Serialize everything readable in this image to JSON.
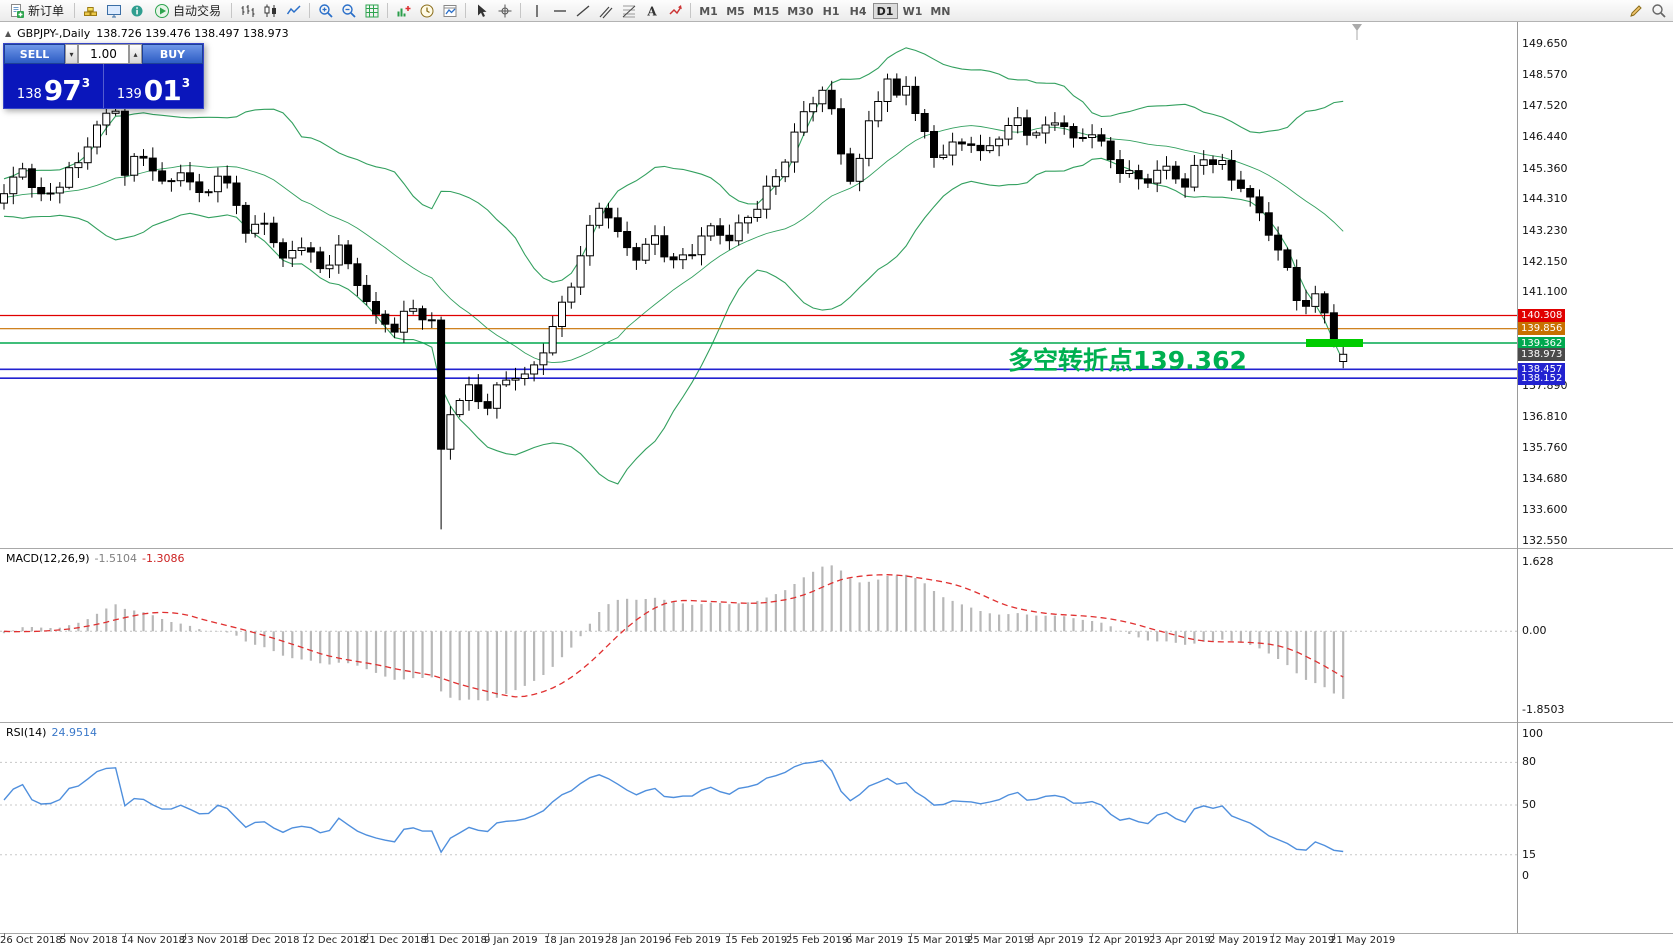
{
  "toolbar": {
    "items": [
      {
        "type": "button",
        "name": "new-order",
        "icon": "new-order",
        "label": "新订单"
      },
      {
        "type": "sep"
      },
      {
        "type": "icon",
        "name": "gold-chart",
        "icon": "gold"
      },
      {
        "type": "icon",
        "name": "market-watch",
        "icon": "monitor"
      },
      {
        "type": "icon",
        "name": "data-window",
        "icon": "info"
      },
      {
        "type": "button",
        "name": "auto-trading",
        "icon": "play",
        "label": "自动交易"
      },
      {
        "type": "sep"
      },
      {
        "type": "icon",
        "name": "bar-chart-mode",
        "icon": "bars"
      },
      {
        "type": "icon",
        "name": "candlestick-mode",
        "icon": "candles"
      },
      {
        "type": "icon",
        "name": "line-chart-mode",
        "icon": "linechart"
      },
      {
        "type": "sep"
      },
      {
        "type": "icon",
        "name": "zoom-in",
        "icon": "zoom-in"
      },
      {
        "type": "icon",
        "name": "zoom-out",
        "icon": "zoom-out"
      },
      {
        "type": "icon",
        "name": "grid-toggle",
        "icon": "grid"
      },
      {
        "type": "sep"
      },
      {
        "type": "icon",
        "name": "indicators-list",
        "icon": "indicators"
      },
      {
        "type": "icon",
        "name": "periods",
        "icon": "clock"
      },
      {
        "type": "icon",
        "name": "templates",
        "icon": "template"
      },
      {
        "type": "sep"
      },
      {
        "type": "icon",
        "name": "cursor-tool",
        "icon": "cursor"
      },
      {
        "type": "icon",
        "name": "crosshair-tool",
        "icon": "crosshair"
      },
      {
        "type": "sep"
      },
      {
        "type": "icon",
        "name": "vertical-line-tool",
        "icon": "vline"
      },
      {
        "type": "icon",
        "name": "horizontal-line-tool",
        "icon": "hline"
      },
      {
        "type": "icon",
        "name": "trendline-tool",
        "icon": "trend"
      },
      {
        "type": "icon",
        "name": "channel-tool",
        "icon": "channel"
      },
      {
        "type": "icon",
        "name": "fibonacci-tool",
        "icon": "fibo"
      },
      {
        "type": "icon",
        "name": "text-tool",
        "icon": "textA"
      },
      {
        "type": "icon",
        "name": "arrows-tool",
        "icon": "arrowico"
      },
      {
        "type": "sep"
      }
    ],
    "timeframes": [
      "M1",
      "M5",
      "M15",
      "M30",
      "H1",
      "H4",
      "D1",
      "W1",
      "MN"
    ],
    "active_timeframe": "D1",
    "right_icons": [
      {
        "name": "draw-edit",
        "icon": "pencil"
      },
      {
        "name": "magnifier-tool",
        "icon": "magnify"
      }
    ]
  },
  "chart_header": {
    "collapse_icon": "▲",
    "symbol_period": "GBPJPY-,Daily",
    "ohlc": "138.726 139.476 138.497 138.973"
  },
  "trade_panel": {
    "sell_label": "SELL",
    "buy_label": "BUY",
    "volume": "1.00",
    "spin_down": "▾",
    "spin_up": "▴",
    "sell_price": {
      "prefix": "138",
      "big": "97",
      "sup": "3"
    },
    "buy_price": {
      "prefix": "139",
      "big": "01",
      "sup": "3"
    }
  },
  "annotation": {
    "text": "多空转折点139.362",
    "color": "#00B050"
  },
  "highlight": {
    "price": 139.362,
    "color": "#00CC00"
  },
  "price_axis": {
    "labels": [
      "149.650",
      "148.570",
      "147.520",
      "146.440",
      "145.360",
      "144.310",
      "143.230",
      "142.150",
      "141.100",
      "137.890",
      "136.810",
      "135.760",
      "134.680",
      "133.600",
      "132.550"
    ],
    "tags": [
      {
        "label": "140.308",
        "price": 140.308,
        "color": "#e00000",
        "line_width": 1.2
      },
      {
        "label": "139.856",
        "price": 139.856,
        "color": "#c87000",
        "line_width": 1.2
      },
      {
        "label": "139.362",
        "price": 139.362,
        "color": "#00a84f",
        "line_width": 1.4
      },
      {
        "label": "138.457",
        "price": 138.457,
        "color": "#2222d0",
        "line_width": 1.7
      },
      {
        "label": "138.152",
        "price": 138.152,
        "color": "#2222d0",
        "line_width": 1.7
      }
    ],
    "current": {
      "label": "138.973",
      "price": 138.973,
      "color": "#4a4a4a"
    }
  },
  "macd_panel": {
    "title": "MACD(12,26,9)",
    "value_main": "-1.5104",
    "value_signal": "-1.3086",
    "axis_labels": [
      {
        "label": "1.628",
        "value": 1.628
      },
      {
        "label": "0.00",
        "value": 0
      },
      {
        "label": "-1.8503",
        "value": -1.8503
      }
    ],
    "histogram_color": "#b8b8b8",
    "signal_color": "#e03030"
  },
  "rsi_panel": {
    "title": "RSI(14)",
    "value": "24.9514",
    "axis_labels": [
      {
        "label": "100",
        "value": 100
      },
      {
        "label": "80",
        "value": 80
      },
      {
        "label": "50",
        "value": 50
      },
      {
        "label": "15",
        "value": 15
      },
      {
        "label": "0",
        "value": 0
      }
    ],
    "levels": [
      80,
      50,
      15
    ],
    "line_color": "#4f8fdd"
  },
  "date_axis": [
    "26 Oct 2018",
    "5 Nov 2018",
    "14 Nov 2018",
    "23 Nov 2018",
    "3 Dec 2018",
    "12 Dec 2018",
    "21 Dec 2018",
    "31 Dec 2018",
    "9 Jan 2019",
    "18 Jan 2019",
    "28 Jan 2019",
    "6 Feb 2019",
    "15 Feb 2019",
    "25 Feb 2019",
    "6 Mar 2019",
    "15 Mar 2019",
    "25 Mar 2019",
    "3 Apr 2019",
    "12 Apr 2019",
    "23 Apr 2019",
    "2 May 2019",
    "12 May 2019",
    "21 May 2019"
  ],
  "chart_data": {
    "type": "candlestick",
    "symbol": "GBPJPY",
    "timeframe": "Daily",
    "y_axis_range": [
      132.55,
      149.65
    ],
    "last_candle": {
      "open": 138.726,
      "high": 139.476,
      "low": 138.497,
      "close": 138.973
    },
    "flash_crash_low": 132.95,
    "horizontal_levels": [
      140.308,
      139.856,
      139.362,
      138.457,
      138.152
    ],
    "bollinger": {
      "period": 20,
      "deviation": 2,
      "color": "#33a05f"
    },
    "indicators": {
      "macd": [
        12,
        26,
        9
      ],
      "macd_values": [
        -1.5104,
        -1.3086
      ],
      "rsi_period": 14,
      "rsi_value": 24.9514
    },
    "close_anchors": [
      [
        0,
        144.5
      ],
      [
        2,
        145.3
      ],
      [
        4,
        144.2
      ],
      [
        6,
        144.9
      ],
      [
        8,
        145.7
      ],
      [
        10,
        146.9
      ],
      [
        12,
        147.4
      ],
      [
        13,
        145.1
      ],
      [
        15,
        145.8
      ],
      [
        17,
        144.8
      ],
      [
        19,
        145.4
      ],
      [
        21,
        144.5
      ],
      [
        23,
        145.0
      ],
      [
        25,
        144.2
      ],
      [
        26,
        143.0
      ],
      [
        28,
        143.6
      ],
      [
        30,
        142.3
      ],
      [
        32,
        142.9
      ],
      [
        34,
        141.8
      ],
      [
        36,
        142.5
      ],
      [
        38,
        141.4
      ],
      [
        40,
        140.3
      ],
      [
        42,
        140.0
      ],
      [
        44,
        140.6
      ],
      [
        46,
        139.9
      ],
      [
        47,
        135.6
      ],
      [
        48,
        136.9
      ],
      [
        50,
        137.8
      ],
      [
        52,
        137.3
      ],
      [
        54,
        138.3
      ],
      [
        56,
        138.1
      ],
      [
        58,
        139.0
      ],
      [
        60,
        140.6
      ],
      [
        62,
        142.4
      ],
      [
        64,
        144.3
      ],
      [
        66,
        143.1
      ],
      [
        68,
        142.2
      ],
      [
        70,
        142.9
      ],
      [
        72,
        142.1
      ],
      [
        74,
        142.7
      ],
      [
        76,
        143.4
      ],
      [
        78,
        142.9
      ],
      [
        80,
        143.6
      ],
      [
        82,
        144.5
      ],
      [
        84,
        145.8
      ],
      [
        86,
        147.4
      ],
      [
        88,
        148.1
      ],
      [
        89,
        147.2
      ],
      [
        90,
        145.9
      ],
      [
        91,
        144.9
      ],
      [
        92,
        145.4
      ],
      [
        93,
        147.1
      ],
      [
        95,
        148.4
      ],
      [
        96,
        148.0
      ],
      [
        97,
        148.4
      ],
      [
        98,
        147.3
      ],
      [
        99,
        146.5
      ],
      [
        100,
        145.9
      ],
      [
        101,
        145.7
      ],
      [
        103,
        146.3
      ],
      [
        105,
        145.9
      ],
      [
        107,
        146.6
      ],
      [
        109,
        147.1
      ],
      [
        111,
        146.4
      ],
      [
        113,
        147.0
      ],
      [
        115,
        146.3
      ],
      [
        117,
        146.7
      ],
      [
        119,
        145.8
      ],
      [
        121,
        145.1
      ],
      [
        123,
        144.9
      ],
      [
        125,
        145.3
      ],
      [
        127,
        144.8
      ],
      [
        129,
        145.9
      ],
      [
        131,
        145.5
      ],
      [
        133,
        144.7
      ],
      [
        135,
        143.7
      ],
      [
        137,
        142.5
      ],
      [
        138,
        141.8
      ],
      [
        139,
        141.1
      ],
      [
        140,
        140.7
      ],
      [
        141,
        141.0
      ],
      [
        142,
        140.4
      ],
      [
        143,
        139.3
      ],
      [
        144,
        138.973
      ]
    ]
  }
}
